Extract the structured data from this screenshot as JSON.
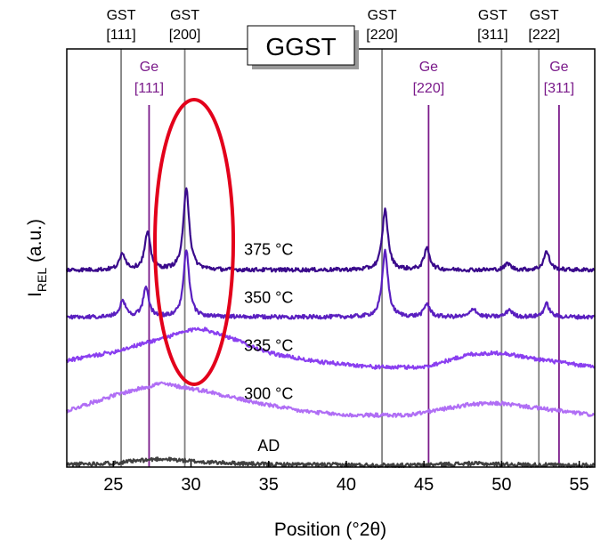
{
  "chart_data": {
    "type": "line",
    "title": "GGST",
    "xlabel": "Position (°2θ)",
    "ylabel": {
      "base": "I",
      "subscript": "REL",
      "suffix": " (a.u.)"
    },
    "xlim": [
      22,
      56
    ],
    "xticks": [
      25,
      30,
      35,
      40,
      45,
      50,
      55
    ],
    "yticks_shown": false,
    "grid": false,
    "legend": "none",
    "gst_reference_lines": [
      {
        "x": 25.5,
        "label": [
          "GST",
          "[111]"
        ]
      },
      {
        "x": 29.6,
        "label": [
          "GST",
          "[200]"
        ]
      },
      {
        "x": 42.3,
        "label": [
          "GST",
          "[220]"
        ]
      },
      {
        "x": 50.0,
        "label": [
          "GST",
          "[311]"
        ]
      },
      {
        "x": 52.4,
        "label": [
          "GST",
          "[222]"
        ]
      }
    ],
    "ge_reference_lines": [
      {
        "x": 27.3,
        "label": [
          "Ge",
          "[111]"
        ]
      },
      {
        "x": 45.3,
        "label": [
          "Ge",
          "[220]"
        ]
      },
      {
        "x": 53.7,
        "label": [
          "Ge",
          "[311]"
        ]
      }
    ],
    "series": [
      {
        "name": "AD",
        "color": "#404040",
        "baseline": 0.0,
        "background": [
          [
            22,
            0.02
          ],
          [
            25,
            0.05
          ],
          [
            28,
            0.15
          ],
          [
            31,
            0.07
          ],
          [
            35,
            0.02
          ],
          [
            40,
            0.01
          ],
          [
            44,
            0.0
          ],
          [
            48,
            0.04
          ],
          [
            52,
            0.01
          ],
          [
            56,
            0.0
          ]
        ],
        "peaks": []
      },
      {
        "name": "300 °C",
        "color": "#b06ef5",
        "baseline": 1.1,
        "background": [
          [
            22,
            0.15
          ],
          [
            25,
            0.5
          ],
          [
            28,
            0.78
          ],
          [
            31,
            0.6
          ],
          [
            34,
            0.35
          ],
          [
            37,
            0.15
          ],
          [
            40,
            0.05
          ],
          [
            44,
            0.05
          ],
          [
            48,
            0.3
          ],
          [
            50,
            0.32
          ],
          [
            53,
            0.18
          ],
          [
            56,
            0.05
          ]
        ],
        "peaks": []
      },
      {
        "name": "335 °C",
        "color": "#8a3ff0",
        "baseline": 2.2,
        "background": [
          [
            22,
            0.2
          ],
          [
            25,
            0.4
          ],
          [
            28,
            0.7
          ],
          [
            30.5,
            0.95
          ],
          [
            32,
            0.8
          ],
          [
            35,
            0.38
          ],
          [
            38,
            0.18
          ],
          [
            42,
            0.05
          ],
          [
            45,
            0.05
          ],
          [
            48,
            0.35
          ],
          [
            50,
            0.38
          ],
          [
            52,
            0.25
          ],
          [
            56,
            0.05
          ]
        ],
        "peaks": []
      },
      {
        "name": "350 °C",
        "color": "#5a1fc0",
        "baseline": 3.3,
        "background": [
          [
            22,
            0.1
          ],
          [
            56,
            0.1
          ]
        ],
        "peaks": [
          [
            25.6,
            0.38
          ],
          [
            27.1,
            0.65
          ],
          [
            29.7,
            1.52
          ],
          [
            42.5,
            1.52
          ],
          [
            45.2,
            0.3
          ],
          [
            48.2,
            0.2
          ],
          [
            50.5,
            0.17
          ],
          [
            52.9,
            0.3
          ]
        ]
      },
      {
        "name": "375 °C",
        "color": "#3a0a8c",
        "baseline": 4.4,
        "background": [
          [
            22,
            0.08
          ],
          [
            56,
            0.08
          ]
        ],
        "peaks": [
          [
            25.6,
            0.38
          ],
          [
            27.2,
            0.85
          ],
          [
            29.7,
            1.9
          ],
          [
            42.5,
            1.38
          ],
          [
            45.2,
            0.5
          ],
          [
            50.4,
            0.15
          ],
          [
            52.9,
            0.42
          ]
        ]
      }
    ],
    "annotation": {
      "shape": "ellipse",
      "color": "#e3001b",
      "center_x": 30.2
    }
  }
}
